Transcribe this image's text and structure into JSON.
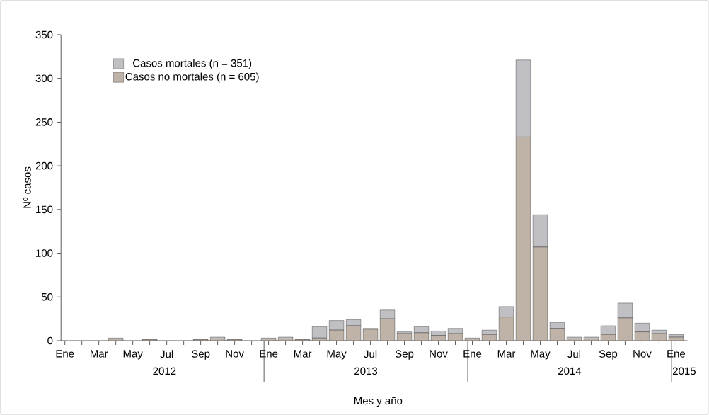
{
  "chart_data": {
    "type": "bar",
    "stacked": true,
    "xlabel": "Mes y año",
    "ylabel": "Nº casos",
    "categories": [
      "Ene",
      null,
      "Mar",
      null,
      "May",
      null,
      "Jul",
      null,
      "Sep",
      null,
      "Nov",
      null,
      "Ene",
      null,
      "Mar",
      null,
      "May",
      null,
      "Jul",
      null,
      "Sep",
      null,
      "Nov",
      null,
      "Ene",
      null,
      "Mar",
      null,
      "May",
      null,
      "Jul",
      null,
      "Sep",
      null,
      "Nov",
      null,
      "Ene"
    ],
    "series": [
      {
        "name": "Casos no mortales (n = 605)",
        "color": "#bfb3a8",
        "values": [
          0,
          0,
          0,
          2,
          0,
          1,
          0,
          0,
          1,
          2,
          1,
          0,
          2,
          2,
          1,
          3,
          12,
          17,
          13,
          25,
          8,
          9,
          6,
          8,
          2,
          7,
          27,
          233,
          107,
          14,
          2,
          2,
          7,
          26,
          10,
          8,
          4
        ]
      },
      {
        "name": "Casos mortales (n = 351)",
        "color": "#c0c0c4",
        "values": [
          0,
          0,
          0,
          1,
          0,
          1,
          0,
          0,
          1,
          2,
          1,
          0,
          1,
          2,
          1,
          13,
          11,
          7,
          1,
          10,
          2,
          7,
          5,
          6,
          1,
          5,
          12,
          88,
          37,
          7,
          2,
          2,
          10,
          17,
          10,
          4,
          3
        ]
      }
    ],
    "ylim": [
      0,
      350
    ],
    "yticks": [
      0,
      50,
      100,
      150,
      200,
      250,
      300,
      350
    ],
    "legend": "top left",
    "grid": false,
    "annotations": [
      "2012",
      "2013",
      "2014",
      "2015"
    ]
  }
}
